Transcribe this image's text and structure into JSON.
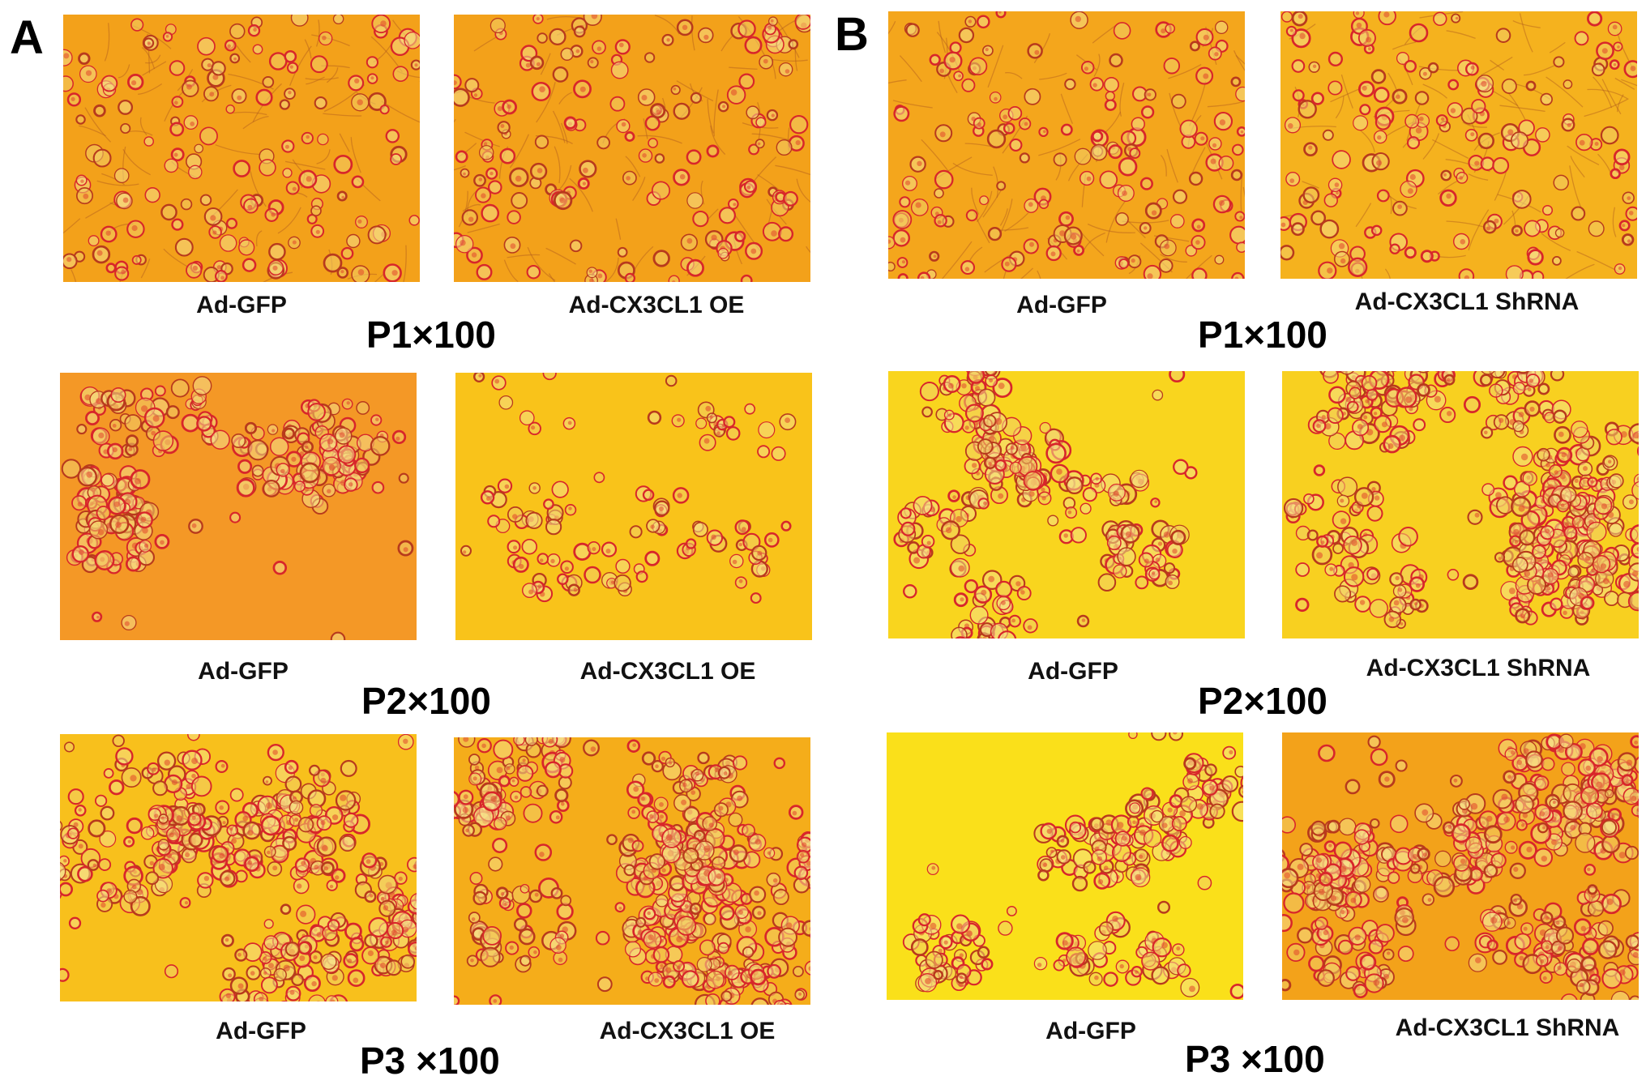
{
  "figure": {
    "panels": [
      {
        "letter": "A",
        "rows": [
          {
            "images": [
              {
                "label": "Ad-GFP",
                "tint": "#f3a11a",
                "density": "spread"
              },
              {
                "label": "Ad-CX3CL1 OE",
                "tint": "#f3a11a",
                "density": "spread"
              }
            ],
            "magnification": "P1×100"
          },
          {
            "images": [
              {
                "label": "Ad-GFP",
                "tint": "#f49826",
                "density": "clusters"
              },
              {
                "label": "Ad-CX3CL1 OE",
                "tint": "#f9c31a",
                "density": "sparse"
              }
            ],
            "magnification": "P2×100"
          },
          {
            "images": [
              {
                "label": "Ad-GFP",
                "tint": "#f8c01c",
                "density": "dense"
              },
              {
                "label": "Ad-CX3CL1 OE",
                "tint": "#f5ad1a",
                "density": "dense"
              }
            ],
            "magnification": "P3 ×100"
          }
        ]
      },
      {
        "letter": "B",
        "rows": [
          {
            "images": [
              {
                "label": "Ad-GFP",
                "tint": "#f4a61c",
                "density": "spread"
              },
              {
                "label": "Ad-CX3CL1 ShRNA",
                "tint": "#f5b21e",
                "density": "spread"
              }
            ],
            "magnification": "P1×100"
          },
          {
            "images": [
              {
                "label": "Ad-GFP",
                "tint": "#f9d51e",
                "density": "clusters"
              },
              {
                "label": "Ad-CX3CL1 ShRNA",
                "tint": "#f8d020",
                "density": "dense"
              }
            ],
            "magnification": "P2×100"
          },
          {
            "images": [
              {
                "label": "Ad-GFP",
                "tint": "#fae01a",
                "density": "clusters"
              },
              {
                "label": "Ad-CX3CL1 ShRNA",
                "tint": "#f3a21a",
                "density": "dense"
              }
            ],
            "magnification": "P3 ×100"
          }
        ]
      }
    ]
  }
}
